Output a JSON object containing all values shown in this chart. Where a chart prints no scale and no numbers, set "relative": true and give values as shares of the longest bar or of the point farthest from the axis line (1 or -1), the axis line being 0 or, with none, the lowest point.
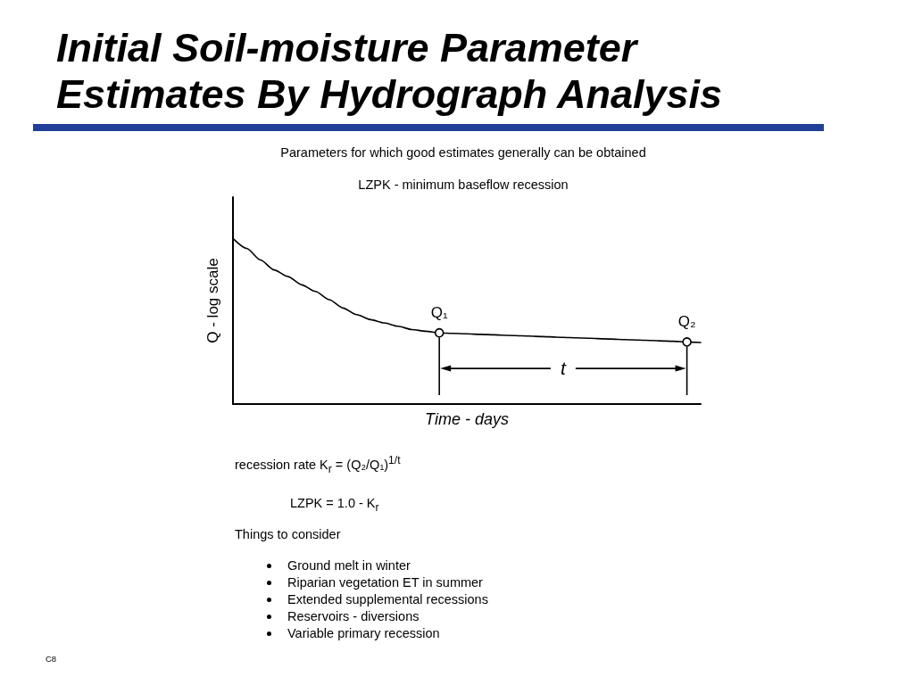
{
  "chart_data": {
    "type": "line",
    "title": "Initial Soil-moisture Parameter Estimates By Hydrograph Analysis",
    "subtitle": "Parameters for which good estimates generally can be obtained",
    "xlabel": "Time - days",
    "ylabel": "Q - log scale",
    "relative": true,
    "marker": "none",
    "line_style": "solid",
    "grid": false,
    "tick_labels": false,
    "categories": [
      null,
      null,
      null,
      null,
      null,
      null,
      null,
      null,
      null,
      null,
      null,
      null,
      null,
      null,
      null,
      null,
      null,
      null,
      null,
      null,
      null,
      null,
      null,
      null,
      null,
      null,
      null,
      null,
      null,
      null,
      null,
      null,
      null,
      null,
      null
    ],
    "series": [
      {
        "color": "#000000",
        "values": [
          1.0,
          0.94,
          0.87,
          0.81,
          0.77,
          0.72,
          0.68,
          0.63,
          0.58,
          0.54,
          0.51,
          0.49,
          0.47,
          0.45,
          0.44,
          0.43,
          0.427,
          0.424,
          0.421,
          0.418,
          0.415,
          0.412,
          0.409,
          0.406,
          0.403,
          0.4,
          0.397,
          0.394,
          0.391,
          0.388,
          0.385,
          0.382,
          0.379,
          0.375,
          0.372
        ]
      },
      {
        "name": "Q₁",
        "marker": "circle",
        "color": "#000000",
        "values": [
          null,
          null,
          null,
          null,
          null,
          null,
          null,
          null,
          null,
          null,
          null,
          null,
          null,
          null,
          null,
          0.43,
          null,
          null,
          null,
          null,
          null,
          null,
          null,
          null,
          null,
          null,
          null,
          null,
          null,
          null,
          null,
          null,
          null,
          null,
          null
        ]
      },
      {
        "name": "Q₂",
        "marker": "circle",
        "color": "#000000",
        "values": [
          null,
          null,
          null,
          null,
          null,
          null,
          null,
          null,
          null,
          null,
          null,
          null,
          null,
          null,
          null,
          null,
          null,
          null,
          null,
          null,
          null,
          null,
          null,
          null,
          null,
          null,
          null,
          null,
          null,
          null,
          null,
          null,
          null,
          0.375,
          null
        ]
      }
    ],
    "annotations": [
      "LZPK - minimum baseflow recession",
      "t",
      "recession rate K$_{r}$ = (Q₂/Q₁)$^{1/t}$",
      "LZPK = 1.0 - K$_{r}$",
      "Things to consider",
      "Ground melt in winter",
      "Riparian vegetation ET in summer",
      "Extended supplemental recessions",
      "Reservoirs - diversions",
      "Variable primary recession",
      "C8"
    ]
  }
}
